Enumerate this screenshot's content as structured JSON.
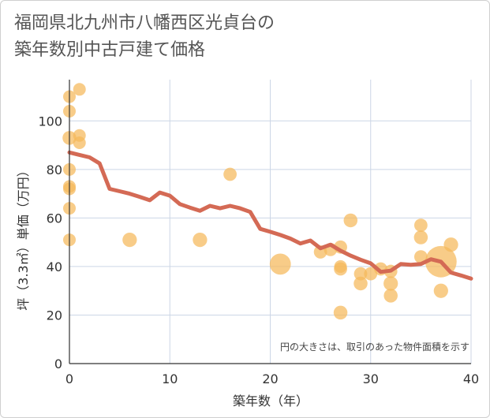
{
  "title": "福岡県北九州市八幡西区光貞台の\n築年数別中古戸建て価格",
  "note": "円の大きさは、取引のあった物件面積を示す",
  "colors": {
    "bubble": "#f5b95a",
    "line": "#d46a55",
    "grid": "#ccd6e6",
    "axis": "#333333"
  },
  "chart_data": {
    "type": "scatter",
    "xlabel": "築年数（年）",
    "ylabel": "坪（3.3㎡）単価（万円）",
    "xlim": [
      0,
      40
    ],
    "ylim": [
      0,
      117
    ],
    "xticks": [
      0,
      10,
      20,
      30,
      40
    ],
    "yticks": [
      0,
      20,
      40,
      60,
      80,
      100
    ],
    "grid": true,
    "series": [
      {
        "kind": "bubble",
        "points": [
          {
            "x": 0,
            "y": 110,
            "size": 1
          },
          {
            "x": 0,
            "y": 104,
            "size": 1
          },
          {
            "x": 0,
            "y": 93,
            "size": 1.2
          },
          {
            "x": 0,
            "y": 80,
            "size": 1
          },
          {
            "x": 0,
            "y": 73,
            "size": 1
          },
          {
            "x": 0,
            "y": 72,
            "size": 1
          },
          {
            "x": 0,
            "y": 64,
            "size": 1
          },
          {
            "x": 0,
            "y": 51,
            "size": 1
          },
          {
            "x": 1,
            "y": 113,
            "size": 1
          },
          {
            "x": 1,
            "y": 94,
            "size": 1
          },
          {
            "x": 1,
            "y": 91,
            "size": 1
          },
          {
            "x": 6,
            "y": 51,
            "size": 1.3
          },
          {
            "x": 13,
            "y": 51,
            "size": 1.3
          },
          {
            "x": 16,
            "y": 78,
            "size": 1.1
          },
          {
            "x": 21,
            "y": 41,
            "size": 2.8
          },
          {
            "x": 25,
            "y": 46,
            "size": 1.1
          },
          {
            "x": 26,
            "y": 47,
            "size": 1.1
          },
          {
            "x": 27,
            "y": 48,
            "size": 1.1
          },
          {
            "x": 27,
            "y": 40,
            "size": 1
          },
          {
            "x": 27,
            "y": 39,
            "size": 1.1
          },
          {
            "x": 27,
            "y": 21,
            "size": 1.2
          },
          {
            "x": 28,
            "y": 59,
            "size": 1.2
          },
          {
            "x": 29,
            "y": 37,
            "size": 1.1
          },
          {
            "x": 29,
            "y": 33,
            "size": 1.2
          },
          {
            "x": 30,
            "y": 37,
            "size": 1.1
          },
          {
            "x": 31,
            "y": 39,
            "size": 1.1
          },
          {
            "x": 32,
            "y": 38,
            "size": 1.1
          },
          {
            "x": 32,
            "y": 33,
            "size": 1.3
          },
          {
            "x": 32,
            "y": 28,
            "size": 1.2
          },
          {
            "x": 35,
            "y": 57,
            "size": 1.1
          },
          {
            "x": 35,
            "y": 52,
            "size": 1.2
          },
          {
            "x": 35,
            "y": 44,
            "size": 1.1
          },
          {
            "x": 37,
            "y": 42,
            "size": 6.2
          },
          {
            "x": 37,
            "y": 30,
            "size": 1.3
          },
          {
            "x": 38,
            "y": 49,
            "size": 1.3
          }
        ]
      },
      {
        "kind": "line",
        "points": [
          {
            "x": 0,
            "y": 87
          },
          {
            "x": 1,
            "y": 86
          },
          {
            "x": 2,
            "y": 85
          },
          {
            "x": 3,
            "y": 82.5
          },
          {
            "x": 4,
            "y": 72
          },
          {
            "x": 5,
            "y": 71
          },
          {
            "x": 6,
            "y": 70
          },
          {
            "x": 7,
            "y": 68.7
          },
          {
            "x": 8,
            "y": 67.3
          },
          {
            "x": 9,
            "y": 70.5
          },
          {
            "x": 10,
            "y": 69.2
          },
          {
            "x": 11,
            "y": 65.7
          },
          {
            "x": 12,
            "y": 64.3
          },
          {
            "x": 13,
            "y": 63
          },
          {
            "x": 14,
            "y": 65
          },
          {
            "x": 15,
            "y": 64
          },
          {
            "x": 16,
            "y": 65
          },
          {
            "x": 17,
            "y": 64
          },
          {
            "x": 18,
            "y": 62.5
          },
          {
            "x": 19,
            "y": 55.5
          },
          {
            "x": 20,
            "y": 54.3
          },
          {
            "x": 21,
            "y": 53
          },
          {
            "x": 22,
            "y": 51.5
          },
          {
            "x": 23,
            "y": 49.5
          },
          {
            "x": 24,
            "y": 50.7
          },
          {
            "x": 25,
            "y": 47.5
          },
          {
            "x": 26,
            "y": 49
          },
          {
            "x": 27,
            "y": 46.5
          },
          {
            "x": 28,
            "y": 44.5
          },
          {
            "x": 29,
            "y": 42.8
          },
          {
            "x": 30,
            "y": 41.3
          },
          {
            "x": 31,
            "y": 37.8
          },
          {
            "x": 32,
            "y": 38.3
          },
          {
            "x": 33,
            "y": 41
          },
          {
            "x": 34,
            "y": 40.7
          },
          {
            "x": 35,
            "y": 41
          },
          {
            "x": 36,
            "y": 43
          },
          {
            "x": 37,
            "y": 42
          },
          {
            "x": 38,
            "y": 37.5
          },
          {
            "x": 39,
            "y": 36.3
          },
          {
            "x": 40,
            "y": 35
          }
        ]
      }
    ]
  }
}
